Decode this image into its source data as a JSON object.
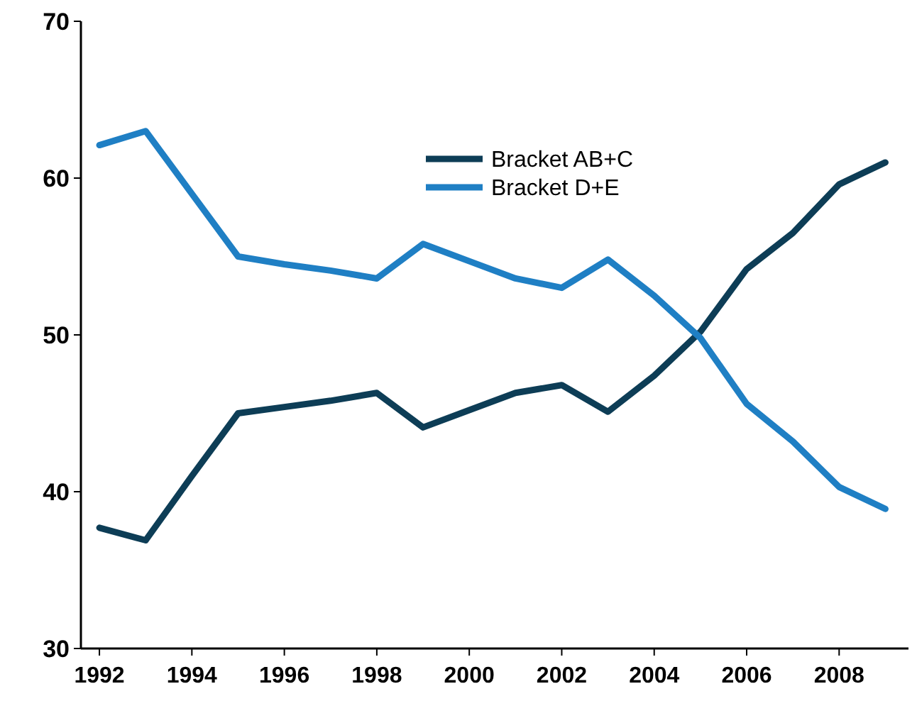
{
  "chart_data": {
    "type": "line",
    "x": [
      1992,
      1993,
      1994,
      1995,
      1996,
      1997,
      1998,
      1999,
      2000,
      2001,
      2002,
      2003,
      2004,
      2005,
      2006,
      2007,
      2008,
      2009
    ],
    "series": [
      {
        "name": "Bracket AB+C",
        "color": "#0d3d56",
        "values": [
          37.7,
          36.9,
          41.0,
          45.0,
          45.4,
          45.8,
          46.3,
          44.1,
          45.2,
          46.3,
          46.8,
          45.1,
          47.4,
          50.2,
          54.2,
          56.5,
          59.6,
          61.0
        ]
      },
      {
        "name": "Bracket D+E",
        "color": "#1f7fc4",
        "values": [
          62.1,
          63.0,
          59.0,
          55.0,
          54.5,
          54.1,
          53.6,
          55.8,
          54.7,
          53.6,
          53.0,
          54.8,
          52.5,
          49.8,
          45.6,
          43.2,
          40.3,
          38.9
        ]
      }
    ],
    "xlim": [
      1991.6,
      2009.5
    ],
    "xticks": [
      1992,
      1994,
      1996,
      1998,
      2000,
      2002,
      2004,
      2006,
      2008
    ],
    "ylim": [
      30,
      70
    ],
    "yticks": [
      30,
      40,
      50,
      60,
      70
    ],
    "grid": false,
    "legend": "top",
    "line_style": "solid",
    "marker": "none"
  }
}
